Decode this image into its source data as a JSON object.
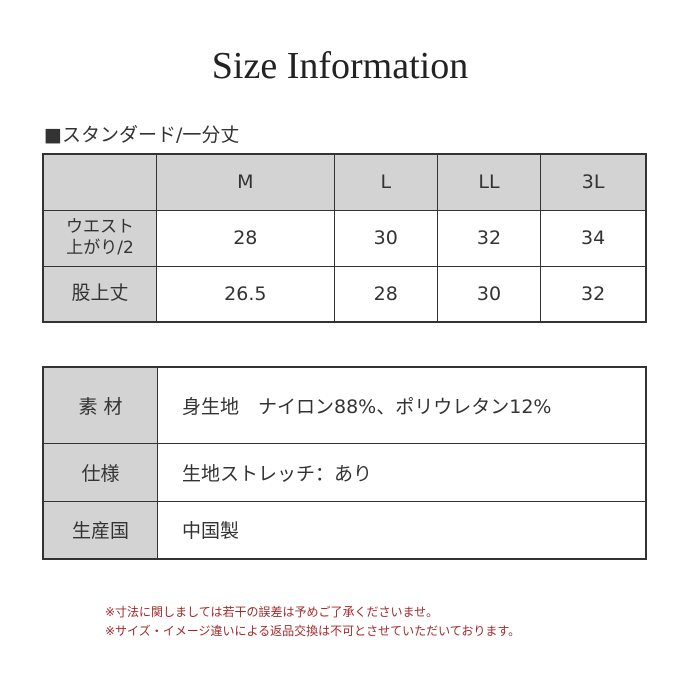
{
  "title": "Size Information",
  "section": "■スタンダード/一分丈",
  "size_table": {
    "columns": [
      "",
      "M",
      "L",
      "LL",
      "3L"
    ],
    "rows": [
      {
        "label": [
          "ウエスト",
          "上がり/2"
        ],
        "values": [
          "28",
          "30",
          "32",
          "34"
        ]
      },
      {
        "label": [
          "股上丈"
        ],
        "values": [
          "26.5",
          "28",
          "30",
          "32"
        ]
      }
    ]
  },
  "spec_table": [
    {
      "label": "素 材",
      "value": "身生地　ナイロン88%、ポリウレタン12%"
    },
    {
      "label": "仕様",
      "value": "生地ストレッチ：あり"
    },
    {
      "label": "生産国",
      "value": "中国製"
    }
  ],
  "notes": [
    "※寸法に関しましては若干の誤差は予めご了承くださいませ。",
    "※サイズ・イメージ違いによる返品交換は不可とさせていただいております。"
  ],
  "colors": {
    "header_bg": "#d3d3d3",
    "note": "#a52a2a"
  }
}
